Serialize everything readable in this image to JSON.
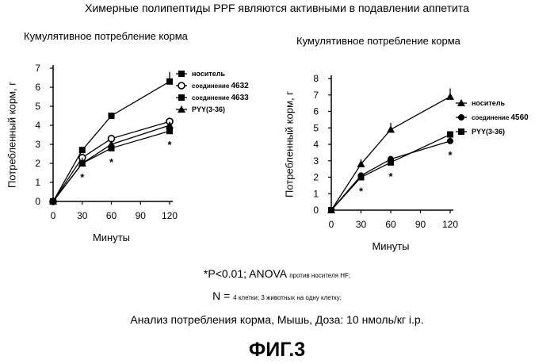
{
  "figure": {
    "title": "Химерные полипептиды PPF являются активными в подавлении аппетита",
    "label": "ФИГ.3"
  },
  "footnotes": {
    "sig_main": "*P<0.01; ANOVA",
    "sig_small": "против носителя HF;",
    "n_main": "N =",
    "n_small": "4 клетки; 3 животных на одну клетку;",
    "analysis": "Анализ потребления корма, Мышь, Доза: 10 нмоль/кг i.p."
  },
  "chart_data": [
    {
      "type": "line",
      "title": "Кумулятивное потребление корма",
      "xlabel": "Минуты",
      "ylabel": "Потребленный корм, г",
      "x": [
        0,
        30,
        60,
        120
      ],
      "xticks": [
        0,
        30,
        60,
        90,
        120
      ],
      "xlim": [
        0,
        120
      ],
      "ylim": [
        0,
        7
      ],
      "yticks": [
        0,
        1,
        2,
        3,
        4,
        5,
        6,
        7
      ],
      "grid": false,
      "legend_position": "top-right",
      "significance_markers": [
        {
          "x": 30,
          "label": "*"
        },
        {
          "x": 60,
          "label": "*"
        },
        {
          "x": 120,
          "label": "*"
        }
      ],
      "series": [
        {
          "name": "носитель",
          "marker": "square",
          "values": [
            0,
            2.7,
            4.5,
            6.3
          ],
          "errors": [
            0,
            0.15,
            0.15,
            0.5
          ]
        },
        {
          "name": "соединение 4632",
          "marker": "circle-open",
          "values": [
            0,
            2.3,
            3.3,
            4.2
          ],
          "errors": [
            0,
            0,
            0,
            0
          ]
        },
        {
          "name": "соединение 4633",
          "marker": "square",
          "values": [
            0,
            2.0,
            2.8,
            3.7
          ],
          "errors": [
            0,
            0.3,
            0.25,
            0.4
          ]
        },
        {
          "name": "PYY(3-36)",
          "marker": "triangle",
          "values": [
            0,
            2.0,
            3.0,
            4.0
          ],
          "errors": [
            0,
            0,
            0,
            0
          ]
        }
      ]
    },
    {
      "type": "line",
      "title": "Кумулятивное потребление корма",
      "xlabel": "Минуты",
      "ylabel": "Потребленный корм, г",
      "x": [
        0,
        30,
        60,
        120
      ],
      "xticks": [
        0,
        30,
        60,
        90,
        120
      ],
      "xlim": [
        0,
        120
      ],
      "ylim": [
        0,
        8
      ],
      "yticks": [
        0,
        1,
        2,
        3,
        4,
        5,
        6,
        7,
        8
      ],
      "grid": false,
      "legend_position": "top-right",
      "significance_markers": [
        {
          "x": 30,
          "label": "*"
        },
        {
          "x": 60,
          "label": "*"
        },
        {
          "x": 120,
          "label": "*"
        }
      ],
      "series": [
        {
          "name": "носитель",
          "marker": "triangle",
          "values": [
            0,
            2.8,
            4.9,
            6.9
          ],
          "errors": [
            0,
            0.3,
            0.4,
            0.5
          ]
        },
        {
          "name": "соединение 4560",
          "marker": "circle",
          "values": [
            0,
            2.1,
            3.1,
            4.2
          ],
          "errors": [
            0,
            0,
            0,
            0.4
          ]
        },
        {
          "name": "PYY(3-36)",
          "marker": "square",
          "values": [
            0,
            2.0,
            2.9,
            4.6
          ],
          "errors": [
            0,
            0,
            0,
            0
          ]
        }
      ]
    }
  ]
}
